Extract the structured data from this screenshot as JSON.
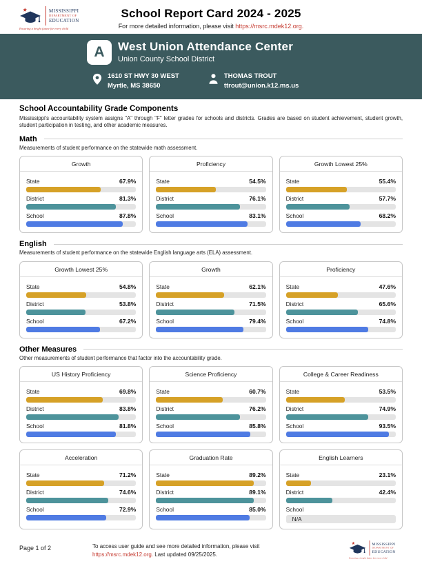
{
  "colors": {
    "state": "#d6a127",
    "district": "#4d939b",
    "school": "#4f7be3",
    "banner": "#3b5a5e",
    "link_red": "#c53a30",
    "bar_track": "#e4e4e4"
  },
  "header": {
    "title": "School Report Card 2024 - 2025",
    "subtitle_prefix": "For more detailed information, please visit ",
    "subtitle_link": "https://msrc.mdek12.org.",
    "logo": {
      "line1": "MISSISSIPPI",
      "line2": "DEPARTMENT OF",
      "line3": "EDUCATION",
      "tagline": "Ensuring a bright future for every child"
    }
  },
  "banner": {
    "grade": "A",
    "school_name": "West Union Attendance Center",
    "district_name": "Union County School District",
    "address_line1": "1610 ST HWY 30 WEST",
    "address_line2": "Myrtle, MS 38650",
    "contact_name": "THOMAS TROUT",
    "contact_email": "ttrout@union.k12.ms.us"
  },
  "components": {
    "heading": "School Accountability Grade Components",
    "description": "Mississippi's accountability system assigns \"A\" through \"F\" letter grades for schools and districts. Grades are based on student achievement, student growth, student participation in testing, and other academic measures."
  },
  "sections": [
    {
      "heading": "Math",
      "description": "Measurements of student performance on the statewide math assessment.",
      "cards": [
        {
          "title": "Growth",
          "rows": [
            {
              "label": "State",
              "value": "67.9%",
              "pct": 67.9,
              "color_key": "state"
            },
            {
              "label": "District",
              "value": "81.3%",
              "pct": 81.3,
              "color_key": "district"
            },
            {
              "label": "School",
              "value": "87.8%",
              "pct": 87.8,
              "color_key": "school"
            }
          ]
        },
        {
          "title": "Proficiency",
          "rows": [
            {
              "label": "State",
              "value": "54.5%",
              "pct": 54.5,
              "color_key": "state"
            },
            {
              "label": "District",
              "value": "76.1%",
              "pct": 76.1,
              "color_key": "district"
            },
            {
              "label": "School",
              "value": "83.1%",
              "pct": 83.1,
              "color_key": "school"
            }
          ]
        },
        {
          "title": "Growth Lowest 25%",
          "rows": [
            {
              "label": "State",
              "value": "55.4%",
              "pct": 55.4,
              "color_key": "state"
            },
            {
              "label": "District",
              "value": "57.7%",
              "pct": 57.7,
              "color_key": "district"
            },
            {
              "label": "School",
              "value": "68.2%",
              "pct": 68.2,
              "color_key": "school"
            }
          ]
        }
      ]
    },
    {
      "heading": "English",
      "description": "Measurements of student performance on the statewide English language arts (ELA) assessment.",
      "cards": [
        {
          "title": "Growth Lowest 25%",
          "rows": [
            {
              "label": "State",
              "value": "54.8%",
              "pct": 54.8,
              "color_key": "state"
            },
            {
              "label": "District",
              "value": "53.8%",
              "pct": 53.8,
              "color_key": "district"
            },
            {
              "label": "School",
              "value": "67.2%",
              "pct": 67.2,
              "color_key": "school"
            }
          ]
        },
        {
          "title": "Growth",
          "rows": [
            {
              "label": "State",
              "value": "62.1%",
              "pct": 62.1,
              "color_key": "state"
            },
            {
              "label": "District",
              "value": "71.5%",
              "pct": 71.5,
              "color_key": "district"
            },
            {
              "label": "School",
              "value": "79.4%",
              "pct": 79.4,
              "color_key": "school"
            }
          ]
        },
        {
          "title": "Proficiency",
          "rows": [
            {
              "label": "State",
              "value": "47.6%",
              "pct": 47.6,
              "color_key": "state"
            },
            {
              "label": "District",
              "value": "65.6%",
              "pct": 65.6,
              "color_key": "district"
            },
            {
              "label": "School",
              "value": "74.8%",
              "pct": 74.8,
              "color_key": "school"
            }
          ]
        }
      ]
    },
    {
      "heading": "Other Measures",
      "description": "Other measurements of student performance that factor into the accountability grade.",
      "cards": [
        {
          "title": "US History Proficiency",
          "rows": [
            {
              "label": "State",
              "value": "69.8%",
              "pct": 69.8,
              "color_key": "state"
            },
            {
              "label": "District",
              "value": "83.8%",
              "pct": 83.8,
              "color_key": "district"
            },
            {
              "label": "School",
              "value": "81.8%",
              "pct": 81.8,
              "color_key": "school"
            }
          ]
        },
        {
          "title": "Science Proficiency",
          "rows": [
            {
              "label": "State",
              "value": "60.7%",
              "pct": 60.7,
              "color_key": "state"
            },
            {
              "label": "District",
              "value": "76.2%",
              "pct": 76.2,
              "color_key": "district"
            },
            {
              "label": "School",
              "value": "85.8%",
              "pct": 85.8,
              "color_key": "school"
            }
          ]
        },
        {
          "title": "College & Career Readiness",
          "rows": [
            {
              "label": "State",
              "value": "53.5%",
              "pct": 53.5,
              "color_key": "state"
            },
            {
              "label": "District",
              "value": "74.9%",
              "pct": 74.9,
              "color_key": "district"
            },
            {
              "label": "School",
              "value": "93.5%",
              "pct": 93.5,
              "color_key": "school"
            }
          ]
        },
        {
          "title": "Acceleration",
          "rows": [
            {
              "label": "State",
              "value": "71.2%",
              "pct": 71.2,
              "color_key": "state"
            },
            {
              "label": "District",
              "value": "74.6%",
              "pct": 74.6,
              "color_key": "district"
            },
            {
              "label": "School",
              "value": "72.9%",
              "pct": 72.9,
              "color_key": "school"
            }
          ]
        },
        {
          "title": "Graduation Rate",
          "rows": [
            {
              "label": "State",
              "value": "89.2%",
              "pct": 89.2,
              "color_key": "state"
            },
            {
              "label": "District",
              "value": "89.1%",
              "pct": 89.1,
              "color_key": "district"
            },
            {
              "label": "School",
              "value": "85.0%",
              "pct": 85.0,
              "color_key": "school"
            }
          ]
        },
        {
          "title": "English Learners",
          "rows": [
            {
              "label": "State",
              "value": "23.1%",
              "pct": 23.1,
              "color_key": "state"
            },
            {
              "label": "District",
              "value": "42.4%",
              "pct": 42.4,
              "color_key": "district"
            },
            {
              "label": "School",
              "value": "",
              "pct": null,
              "na": "N/A",
              "color_key": "school"
            }
          ]
        }
      ]
    }
  ],
  "footer": {
    "page": "Page 1 of 2",
    "note_prefix": "To access user guide and see more detailed information, please visit ",
    "note_link": "https://msrc.mdek12.org.",
    "note_suffix": " Last updated 09/25/2025."
  },
  "chart_data": [
    {
      "type": "bar",
      "title": "Growth",
      "section": "Math",
      "categories": [
        "State",
        "District",
        "School"
      ],
      "values": [
        67.9,
        81.3,
        87.8
      ],
      "xlim": [
        0,
        100
      ]
    },
    {
      "type": "bar",
      "title": "Proficiency",
      "section": "Math",
      "categories": [
        "State",
        "District",
        "School"
      ],
      "values": [
        54.5,
        76.1,
        83.1
      ],
      "xlim": [
        0,
        100
      ]
    },
    {
      "type": "bar",
      "title": "Growth Lowest 25%",
      "section": "Math",
      "categories": [
        "State",
        "District",
        "School"
      ],
      "values": [
        55.4,
        57.7,
        68.2
      ],
      "xlim": [
        0,
        100
      ]
    },
    {
      "type": "bar",
      "title": "Growth Lowest 25%",
      "section": "English",
      "categories": [
        "State",
        "District",
        "School"
      ],
      "values": [
        54.8,
        53.8,
        67.2
      ],
      "xlim": [
        0,
        100
      ]
    },
    {
      "type": "bar",
      "title": "Growth",
      "section": "English",
      "categories": [
        "State",
        "District",
        "School"
      ],
      "values": [
        62.1,
        71.5,
        79.4
      ],
      "xlim": [
        0,
        100
      ]
    },
    {
      "type": "bar",
      "title": "Proficiency",
      "section": "English",
      "categories": [
        "State",
        "District",
        "School"
      ],
      "values": [
        47.6,
        65.6,
        74.8
      ],
      "xlim": [
        0,
        100
      ]
    },
    {
      "type": "bar",
      "title": "US History Proficiency",
      "section": "Other Measures",
      "categories": [
        "State",
        "District",
        "School"
      ],
      "values": [
        69.8,
        83.8,
        81.8
      ],
      "xlim": [
        0,
        100
      ]
    },
    {
      "type": "bar",
      "title": "Science Proficiency",
      "section": "Other Measures",
      "categories": [
        "State",
        "District",
        "School"
      ],
      "values": [
        60.7,
        76.2,
        85.8
      ],
      "xlim": [
        0,
        100
      ]
    },
    {
      "type": "bar",
      "title": "College & Career Readiness",
      "section": "Other Measures",
      "categories": [
        "State",
        "District",
        "School"
      ],
      "values": [
        53.5,
        74.9,
        93.5
      ],
      "xlim": [
        0,
        100
      ]
    },
    {
      "type": "bar",
      "title": "Acceleration",
      "section": "Other Measures",
      "categories": [
        "State",
        "District",
        "School"
      ],
      "values": [
        71.2,
        74.6,
        72.9
      ],
      "xlim": [
        0,
        100
      ]
    },
    {
      "type": "bar",
      "title": "Graduation Rate",
      "section": "Other Measures",
      "categories": [
        "State",
        "District",
        "School"
      ],
      "values": [
        89.2,
        89.1,
        85.0
      ],
      "xlim": [
        0,
        100
      ]
    },
    {
      "type": "bar",
      "title": "English Learners",
      "section": "Other Measures",
      "categories": [
        "State",
        "District",
        "School"
      ],
      "values": [
        23.1,
        42.4,
        null
      ],
      "xlim": [
        0,
        100
      ]
    }
  ]
}
